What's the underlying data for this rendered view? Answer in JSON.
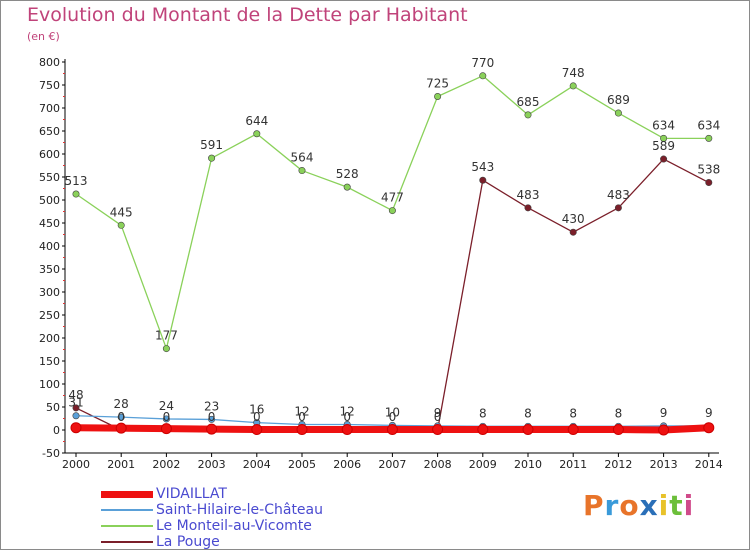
{
  "header": {
    "title": "Evolution du Montant de la Dette par Habitant",
    "unit": "(en €)"
  },
  "logo": {
    "text": "Proxiti",
    "letters": [
      {
        "ch": "P",
        "color": "#e8742a"
      },
      {
        "ch": "r",
        "color": "#3a9ad9"
      },
      {
        "ch": "o",
        "color": "#e8742a"
      },
      {
        "ch": "x",
        "color": "#2a6fb8"
      },
      {
        "ch": "i",
        "color": "#e8c22a"
      },
      {
        "ch": "t",
        "color": "#6cbf3a"
      },
      {
        "ch": "i",
        "color": "#d04a8a"
      }
    ]
  },
  "chart_data": {
    "type": "line",
    "title": "Evolution du Montant de la Dette par Habitant",
    "ylabel": "(en €)",
    "xlabel": "",
    "ylim": [
      -50,
      800
    ],
    "yticks": [
      -50,
      0,
      50,
      100,
      150,
      200,
      250,
      300,
      350,
      400,
      450,
      500,
      550,
      600,
      650,
      700,
      750,
      800
    ],
    "categories": [
      "2000",
      "2001",
      "2002",
      "2003",
      "2004",
      "2005",
      "2006",
      "2007",
      "2008",
      "2009",
      "2010",
      "2011",
      "2012",
      "2013",
      "2014"
    ],
    "grid": false,
    "legend_position": "bottom-left",
    "series": [
      {
        "name": "La Pouge",
        "color": "#7b1f2a",
        "values": [
          48,
          0,
          0,
          0,
          0,
          0,
          0,
          0,
          0,
          543,
          483,
          430,
          483,
          589,
          538
        ],
        "labels": [
          "48",
          "0",
          "0",
          "0",
          "0",
          "0",
          "0",
          "0",
          "0",
          "543",
          "483",
          "430",
          "483",
          "589",
          "538"
        ]
      },
      {
        "name": "Saint-Hilaire-le-Château",
        "color": "#5aa0d8",
        "values": [
          31,
          28,
          24,
          23,
          16,
          12,
          12,
          10,
          9,
          8,
          8,
          8,
          8,
          9,
          9
        ],
        "labels": [
          "31",
          "28",
          "24",
          "23",
          "16",
          "12",
          "12",
          "10",
          "9",
          "8",
          "8",
          "8",
          "8",
          "9",
          "9"
        ]
      },
      {
        "name": "Le Monteil-au-Vicomte",
        "color": "#8ad15a",
        "values": [
          513,
          445,
          177,
          591,
          644,
          564,
          528,
          477,
          725,
          770,
          685,
          748,
          689,
          634,
          634
        ],
        "labels": [
          "513",
          "445",
          "177",
          "591",
          "644",
          "564",
          "528",
          "477",
          "725",
          "770",
          "685",
          "748",
          "689",
          "634",
          "634"
        ]
      },
      {
        "name": "VIDAILLAT",
        "color": "#ee1111",
        "values": [
          5,
          4,
          3,
          2,
          1,
          1,
          1,
          1,
          1,
          1,
          1,
          1,
          1,
          0,
          5
        ],
        "labels": []
      }
    ],
    "legend_order": [
      "VIDAILLAT",
      "Saint-Hilaire-le-Château",
      "Le Monteil-au-Vicomte",
      "La Pouge"
    ]
  }
}
